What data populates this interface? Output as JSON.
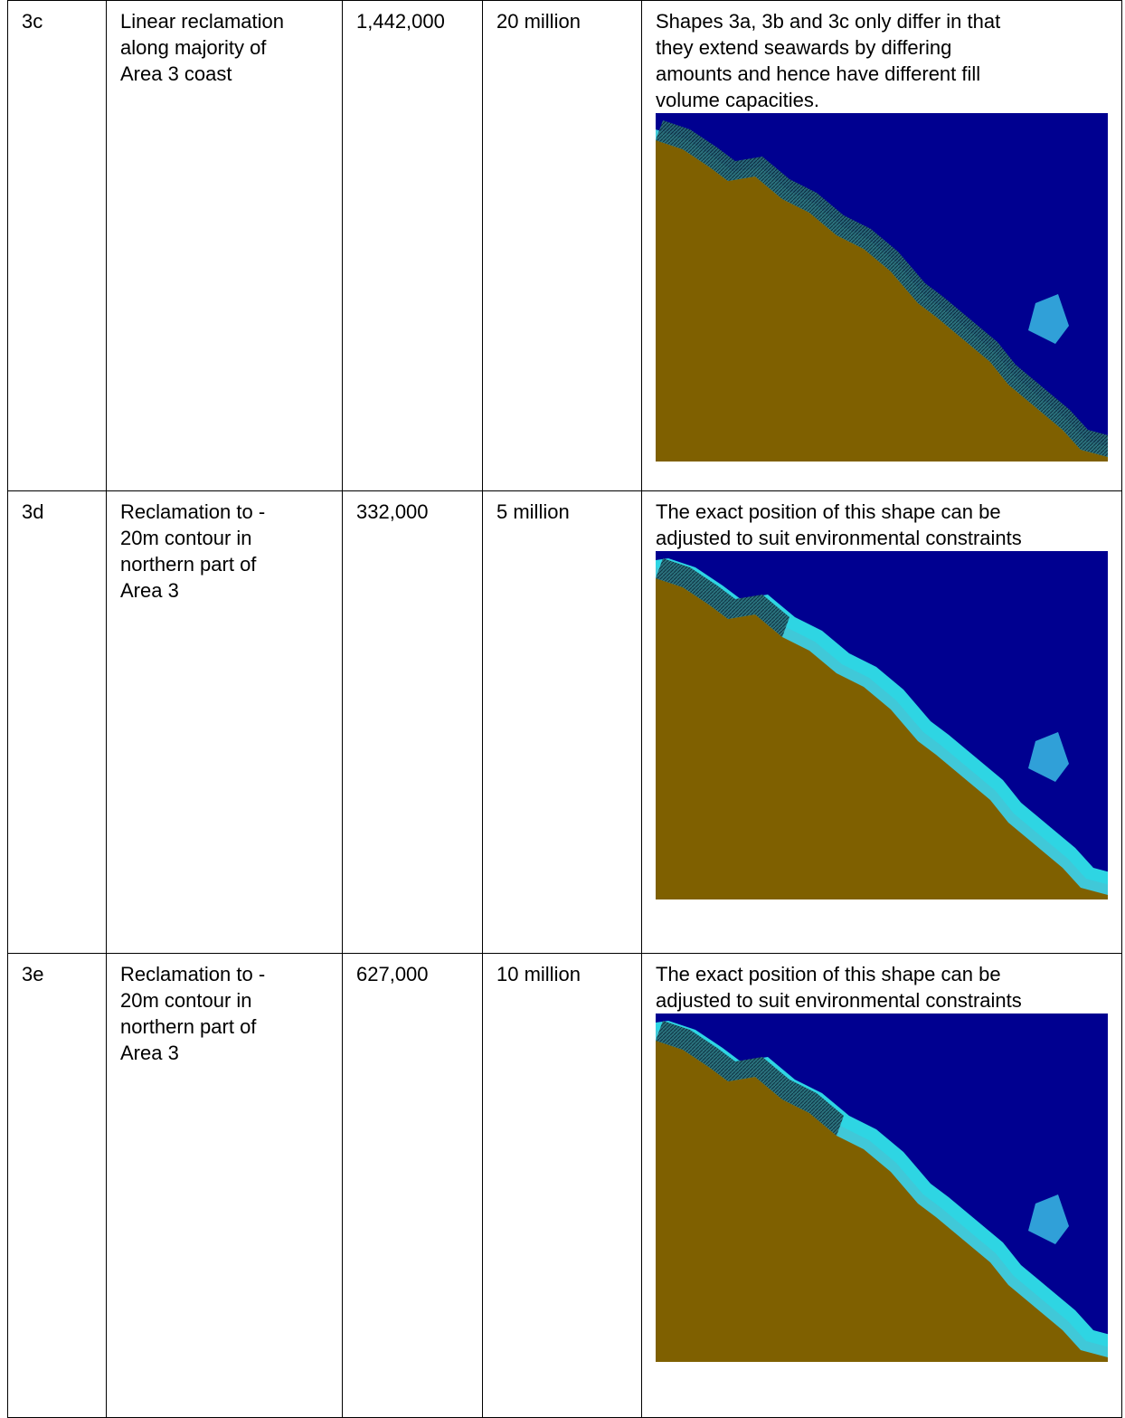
{
  "table": {
    "rows": [
      {
        "id": "3c",
        "description": [
          "Linear reclamation",
          "along majority of",
          "Area 3 coast"
        ],
        "area": "1,442,000",
        "volume": "20 million",
        "notes": [
          "Shapes 3a, 3b and 3c only differ in that",
          "they extend seawards by differing",
          "amounts and hence have different fill",
          "volume capacities."
        ]
      },
      {
        "id": "3d",
        "description": [
          "Reclamation to -",
          "20m contour in",
          "northern part of",
          "Area 3"
        ],
        "area": "332,000",
        "volume": "5 million",
        "notes": [
          "The exact position of this shape can be",
          "adjusted to suit environmental constraints"
        ]
      },
      {
        "id": "3e",
        "description": [
          "Reclamation to -",
          "20m contour in",
          "northern part of",
          "Area 3"
        ],
        "area": "627,000",
        "volume": "10 million",
        "notes": [
          "The exact position of this shape can be",
          "adjusted to suit environmental constraints"
        ]
      }
    ]
  }
}
